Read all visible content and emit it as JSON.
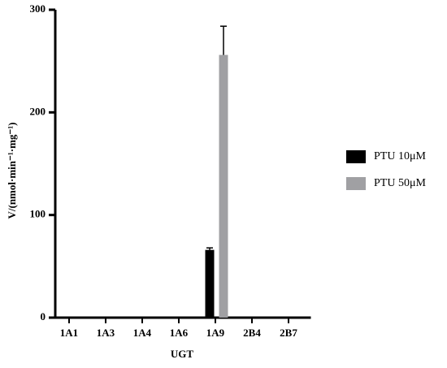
{
  "chart_data": {
    "type": "bar",
    "y_label": "V/(nmol·min⁻¹·mg⁻¹)",
    "x_label": "UGT",
    "categories": [
      "1A1",
      "1A3",
      "1A4",
      "1A6",
      "1A9",
      "2B4",
      "2B7"
    ],
    "series": [
      {
        "name": "PTU 10μM",
        "color": "#000000",
        "values": [
          0,
          0,
          0,
          0,
          66,
          0,
          0
        ],
        "errors": [
          0,
          0,
          0,
          0,
          2,
          0,
          0
        ]
      },
      {
        "name": "PTU 50μM",
        "color": "#a0a0a3",
        "values": [
          0,
          0,
          0,
          0,
          256,
          0,
          0
        ],
        "errors": [
          0,
          0,
          0,
          0,
          28,
          0,
          0
        ]
      }
    ],
    "ylim": [
      0,
      300
    ],
    "yticks": [
      0,
      100,
      200,
      300
    ],
    "legend": "right"
  }
}
